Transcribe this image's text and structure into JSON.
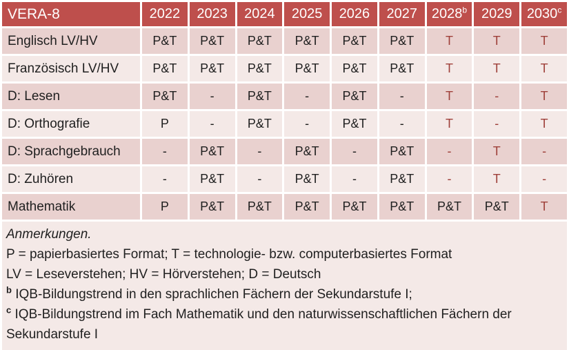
{
  "colors": {
    "header_bg": "#BE4F4C",
    "band_dark": "#E9D1CF",
    "band_light": "#F4E9E7",
    "red_text": "#9E3F39",
    "text": "#1F1F1F",
    "header_text": "#FFFFFF"
  },
  "table": {
    "title": "VERA-8",
    "columns": [
      {
        "label": "2022",
        "sup": ""
      },
      {
        "label": "2023",
        "sup": ""
      },
      {
        "label": "2024",
        "sup": ""
      },
      {
        "label": "2025",
        "sup": ""
      },
      {
        "label": "2026",
        "sup": ""
      },
      {
        "label": "2027",
        "sup": ""
      },
      {
        "label": "2028",
        "sup": "b"
      },
      {
        "label": "2029",
        "sup": ""
      },
      {
        "label": "2030",
        "sup": "c"
      }
    ],
    "rows": [
      {
        "label": "Englisch LV/HV",
        "cells": [
          {
            "v": "P&T",
            "red": false
          },
          {
            "v": "P&T",
            "red": false
          },
          {
            "v": "P&T",
            "red": false
          },
          {
            "v": "P&T",
            "red": false
          },
          {
            "v": "P&T",
            "red": false
          },
          {
            "v": "P&T",
            "red": false
          },
          {
            "v": "T",
            "red": true
          },
          {
            "v": "T",
            "red": true
          },
          {
            "v": "T",
            "red": true
          }
        ]
      },
      {
        "label": "Französisch LV/HV",
        "cells": [
          {
            "v": "P&T",
            "red": false
          },
          {
            "v": "P&T",
            "red": false
          },
          {
            "v": "P&T",
            "red": false
          },
          {
            "v": "P&T",
            "red": false
          },
          {
            "v": "P&T",
            "red": false
          },
          {
            "v": "P&T",
            "red": false
          },
          {
            "v": "T",
            "red": true
          },
          {
            "v": "T",
            "red": true
          },
          {
            "v": "T",
            "red": true
          }
        ]
      },
      {
        "label": "D: Lesen",
        "cells": [
          {
            "v": "P&T",
            "red": false
          },
          {
            "v": "-",
            "red": false
          },
          {
            "v": "P&T",
            "red": false
          },
          {
            "v": "-",
            "red": false
          },
          {
            "v": "P&T",
            "red": false
          },
          {
            "v": "-",
            "red": false
          },
          {
            "v": "T",
            "red": true
          },
          {
            "v": "-",
            "red": true
          },
          {
            "v": "T",
            "red": true
          }
        ]
      },
      {
        "label": "D: Orthografie",
        "cells": [
          {
            "v": "P",
            "red": false
          },
          {
            "v": "-",
            "red": false
          },
          {
            "v": "P&T",
            "red": false
          },
          {
            "v": "-",
            "red": false
          },
          {
            "v": "P&T",
            "red": false
          },
          {
            "v": "-",
            "red": false
          },
          {
            "v": "T",
            "red": true
          },
          {
            "v": "-",
            "red": true
          },
          {
            "v": "T",
            "red": true
          }
        ]
      },
      {
        "label": "D: Sprachgebrauch",
        "cells": [
          {
            "v": "-",
            "red": false
          },
          {
            "v": "P&T",
            "red": false
          },
          {
            "v": "-",
            "red": false
          },
          {
            "v": "P&T",
            "red": false
          },
          {
            "v": "-",
            "red": false
          },
          {
            "v": "P&T",
            "red": false
          },
          {
            "v": "-",
            "red": true
          },
          {
            "v": "T",
            "red": true
          },
          {
            "v": "-",
            "red": true
          }
        ]
      },
      {
        "label": "D: Zuhören",
        "cells": [
          {
            "v": "-",
            "red": false
          },
          {
            "v": "P&T",
            "red": false
          },
          {
            "v": "-",
            "red": false
          },
          {
            "v": "P&T",
            "red": false
          },
          {
            "v": "-",
            "red": false
          },
          {
            "v": "P&T",
            "red": false
          },
          {
            "v": "-",
            "red": true
          },
          {
            "v": "T",
            "red": true
          },
          {
            "v": "-",
            "red": true
          }
        ]
      },
      {
        "label": "Mathematik",
        "cells": [
          {
            "v": "P",
            "red": false
          },
          {
            "v": "P&T",
            "red": false
          },
          {
            "v": "P&T",
            "red": false
          },
          {
            "v": "P&T",
            "red": false
          },
          {
            "v": "P&T",
            "red": false
          },
          {
            "v": "P&T",
            "red": false
          },
          {
            "v": "P&T",
            "red": false
          },
          {
            "v": "P&T",
            "red": false
          },
          {
            "v": "T",
            "red": true
          }
        ]
      }
    ]
  },
  "notes": {
    "heading": "Anmerkungen.",
    "line1": "P = papierbasiertes Format; T = technologie- bzw. computerbasiertes Format",
    "line2": "LV = Leseverstehen; HV = Hörverstehen; D = Deutsch",
    "b_sup": "b",
    "b_text": "IQB-Bildungstrend in den sprachlichen Fächern der Sekundarstufe I;",
    "c_sup": "c",
    "c_text": "IQB-Bildungstrend im Fach Mathematik und den naturwissenschaftlichen Fächern der Sekundarstufe I"
  }
}
